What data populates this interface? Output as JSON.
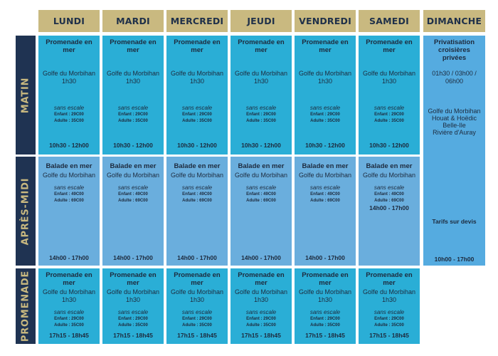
{
  "days": [
    "LUNDI",
    "MARDI",
    "MERCREDI",
    "JEUDI",
    "VENDREDI",
    "SAMEDI",
    "DIMANCHE"
  ],
  "rows": [
    "MATIN",
    "APRÈS-MIDI",
    "PROMENADE"
  ],
  "morning": {
    "title": "Promenade en mer",
    "location": "Golfe du Morbihan",
    "duration": "1h30",
    "stopover": "sans escale",
    "child_price": "Enfant : 29C00",
    "adult_price": "Adulte : 35C00",
    "hours": "10h30 - 12h00"
  },
  "afternoon": {
    "title": "Balade en mer",
    "location": "Golfe du Morbihan",
    "stopover": "sans escale",
    "child_price": "Enfant : 49C00",
    "adult_price": "Adulte : 69C00",
    "hours": "14h00 - 17h00"
  },
  "evening": {
    "title": "Promenade en mer",
    "location": "Golfe du Morbihan",
    "duration": "1h30",
    "stopover": "sans escale",
    "child_price": "Enfant : 29C00",
    "adult_price": "Adulte : 35C00",
    "hours": "17h15 - 18h45"
  },
  "sunday": {
    "title": "Privatisation croisières privées",
    "durations": "01h30 / 03h00 / 06h00",
    "destinations": [
      "Golfe du Morbihan",
      "Houat & Hoëdic",
      "Belle-Ile",
      "Rivière d'Auray"
    ],
    "quote": "Tarifs sur devis",
    "hours": "10h00 - 17h00"
  },
  "colors": {
    "header_gold": "#c9b980",
    "navy": "#1f3352",
    "cell_cyan": "#2aaed6",
    "cell_light_blue": "#6aaedd"
  }
}
